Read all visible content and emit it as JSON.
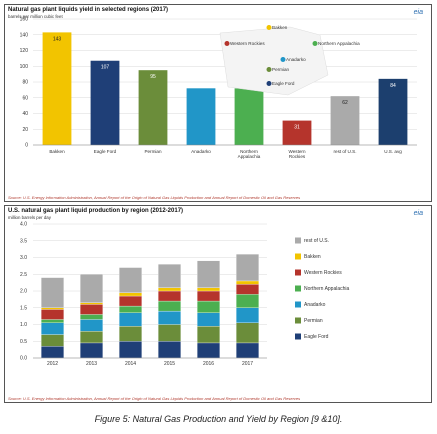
{
  "caption": "Figure 5: Natural Gas Production and Yield by Region [9 &10].",
  "logo_text": "eia",
  "chart_data": [
    {
      "type": "bar",
      "title": "Natural gas plant liquids yield in selected regions (2017)",
      "ylabel": "barrels per million cubic feet",
      "ylim": [
        0,
        160
      ],
      "yticks": [
        0,
        20,
        40,
        60,
        80,
        100,
        120,
        140,
        160
      ],
      "categories": [
        "Bakken",
        "Eagle Ford",
        "Permian",
        "Anadarko",
        "Northern Appalachia",
        "Western Rockies",
        "rest of U.S.",
        "U.S. avg"
      ],
      "category_labels": [
        [
          "Bakken"
        ],
        [
          "Eagle Ford"
        ],
        [
          "Permian"
        ],
        [
          "Anadarko"
        ],
        [
          "Northern",
          "Appalachia"
        ],
        [
          "Western",
          "Rockies"
        ],
        [
          "rest of U.S."
        ],
        [
          "U.S. avg"
        ]
      ],
      "values": [
        143,
        107,
        95,
        72,
        72,
        31,
        62,
        84
      ],
      "value_labels": [
        "143",
        "107",
        "95",
        "",
        "",
        "31",
        "62",
        "84"
      ],
      "colors": [
        "#f2c400",
        "#1f3f77",
        "#6b8d3a",
        "#2196c8",
        "#4caf50",
        "#b5342c",
        "#aaaaaa",
        "#1c3f6e"
      ],
      "map_labels": [
        "Bakken",
        "Western Rockies",
        "Northern Appalachia",
        "Anadarko",
        "Permian",
        "Eagle Ford"
      ],
      "source": "Source: U.S. Energy Information Administration, Annual Report of the Origin of Natural Gas Liquids Production and Annual Report of Domestic Oil and Gas Reserves"
    },
    {
      "type": "bar",
      "stacked": true,
      "title": "U.S. natural gas plant liquid production by region (2012-2017)",
      "ylabel": "million barrels per day",
      "ylim": [
        0,
        4.0
      ],
      "yticks": [
        0.0,
        0.5,
        1.0,
        1.5,
        2.0,
        2.5,
        3.0,
        3.5,
        4.0
      ],
      "ytick_labels": [
        "0.0",
        "0.5",
        "1.0",
        "1.5",
        "2.0",
        "2.5",
        "3.0",
        "3.5",
        "4.0"
      ],
      "categories": [
        "2012",
        "2013",
        "2014",
        "2015",
        "2016",
        "2017"
      ],
      "series": [
        {
          "name": "Eagle Ford",
          "color": "#1f3f77",
          "values": [
            0.35,
            0.45,
            0.5,
            0.5,
            0.45,
            0.45
          ]
        },
        {
          "name": "Permian",
          "color": "#6b8d3a",
          "values": [
            0.35,
            0.35,
            0.45,
            0.5,
            0.5,
            0.6
          ]
        },
        {
          "name": "Anadarko",
          "color": "#2196c8",
          "values": [
            0.35,
            0.35,
            0.4,
            0.4,
            0.4,
            0.45
          ]
        },
        {
          "name": "Northern Appalachia",
          "color": "#4caf50",
          "values": [
            0.1,
            0.15,
            0.2,
            0.3,
            0.35,
            0.4
          ]
        },
        {
          "name": "Western Rockies",
          "color": "#b5342c",
          "values": [
            0.3,
            0.3,
            0.3,
            0.3,
            0.3,
            0.3
          ]
        },
        {
          "name": "Bakken",
          "color": "#f2c400",
          "values": [
            0.05,
            0.05,
            0.1,
            0.1,
            0.1,
            0.1
          ]
        },
        {
          "name": "rest of U.S.",
          "color": "#aaaaaa",
          "values": [
            0.9,
            0.85,
            0.75,
            0.7,
            0.8,
            0.8
          ]
        }
      ],
      "legend_labels": [
        "rest of U.S.",
        "Bakken",
        "Western Rockies",
        "Northern Appalachia",
        "Anadarko",
        "Permian",
        "Eagle Ford"
      ],
      "source": "Source: U.S. Energy Information Administration, Annual Report of the Origin of Natural Gas Liquids Production and Annual Report of Domestic Oil and Gas Reserves"
    }
  ]
}
